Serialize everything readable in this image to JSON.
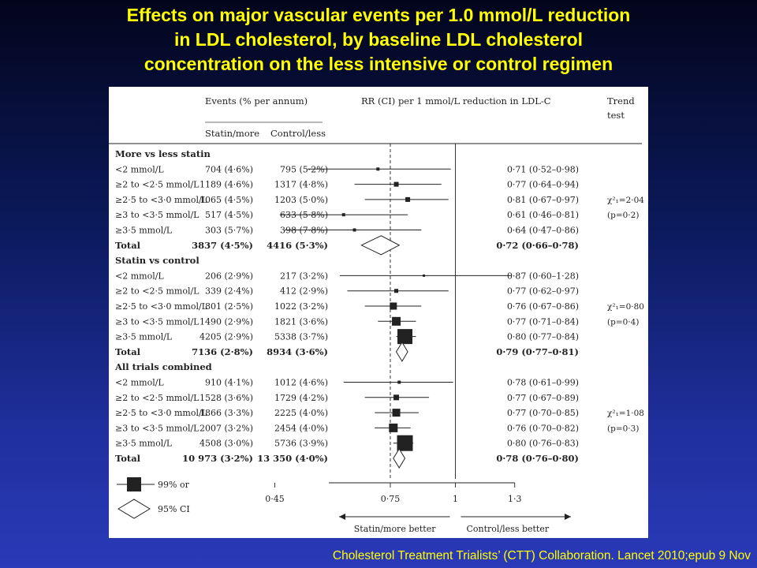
{
  "title_lines": [
    "Effects on major vascular events per 1.0 mmol/L reduction",
    "in LDL cholesterol, by baseline LDL cholesterol",
    "concentration on the less intensive or control regimen"
  ],
  "citation": "Cholesterol Treatment Trialists’ (CTT) Collaboration. Lancet 2010;epub 9 Nov",
  "colors": {
    "background": "#0b1a5c",
    "title": "#ffff00",
    "marker": "#222222"
  },
  "chart_data": {
    "type": "forest",
    "header": {
      "events": "Events (% per annum)",
      "col1": "Statin/more",
      "col2": "Control/less",
      "rr": "RR (CI) per 1 mmol/L reduction in LDL-C",
      "trend_1": "Trend",
      "trend_2": "test"
    },
    "x_axis": {
      "scale": "log",
      "range": [
        0.45,
        1.3
      ],
      "ticks": [
        0.45,
        0.75,
        1,
        1.3
      ],
      "tick_labels": [
        "0·45",
        "0·75",
        "1",
        "1·3"
      ],
      "left_label": "Statin/more better",
      "right_label": "Control/less better",
      "reference_line": 1
    },
    "legend": [
      {
        "symbol": "square",
        "label": "99% or"
      },
      {
        "symbol": "diamond",
        "label": "95% CI"
      }
    ],
    "groups": [
      {
        "name": "More vs less statin",
        "trend_lines": [
          "χ²₁=2·04",
          "(p=0·2)"
        ],
        "rows": [
          {
            "label": "<2 mmol/L",
            "ev1": "704 (4·6%)",
            "ev2": "795 (5·2%)",
            "rr": 0.71,
            "lo": 0.52,
            "hi": 0.98,
            "w": 4,
            "rr_text": "0·71 (0·52–0·98)"
          },
          {
            "label": "≥2 to <2·5 mmol/L",
            "ev1": "1189 (4·6%)",
            "ev2": "1317 (4·8%)",
            "rr": 0.77,
            "lo": 0.64,
            "hi": 0.94,
            "w": 6,
            "rr_text": "0·77 (0·64–0·94)"
          },
          {
            "label": "≥2·5 to <3·0 mmol/L",
            "ev1": "1065 (4·5%)",
            "ev2": "1203 (5·0%)",
            "rr": 0.81,
            "lo": 0.67,
            "hi": 0.97,
            "w": 6,
            "rr_text": "0·81 (0·67–0·97)"
          },
          {
            "label": "≥3 to <3·5 mmol/L",
            "ev1": "517 (4·5%)",
            "ev2": "633 (5·8%)",
            "rr": 0.61,
            "lo": 0.46,
            "hi": 0.81,
            "w": 4,
            "rr_text": "0·61 (0·46–0·81)"
          },
          {
            "label": "≥3·5 mmol/L",
            "ev1": "303 (5·7%)",
            "ev2": "398 (7·8%)",
            "rr": 0.64,
            "lo": 0.47,
            "hi": 0.86,
            "w": 4,
            "rr_text": "0·64 (0·47–0·86)"
          }
        ],
        "total": {
          "label": "Total",
          "ev1": "3837 (4·5%)",
          "ev2": "4416 (5·3%)",
          "rr": 0.72,
          "lo": 0.66,
          "hi": 0.78,
          "diamond": "open",
          "rr_text": "0·72 (0·66–0·78)"
        }
      },
      {
        "name": "Statin vs control",
        "trend_lines": [
          "χ²₁=0·80",
          "(p=0·4)"
        ],
        "rows": [
          {
            "label": "<2 mmol/L",
            "ev1": "206 (2·9%)",
            "ev2": "217 (3·2%)",
            "rr": 0.87,
            "lo": 0.6,
            "hi": 1.28,
            "w": 3,
            "rr_text": "0·87 (0·60–1·28)"
          },
          {
            "label": "≥2 to <2·5 mmol/L",
            "ev1": "339 (2·4%)",
            "ev2": "412 (2·9%)",
            "rr": 0.77,
            "lo": 0.62,
            "hi": 0.97,
            "w": 5,
            "rr_text": "0·77 (0·62–0·97)"
          },
          {
            "label": "≥2·5 to <3·0 mmol/L",
            "ev1": "801 (2·5%)",
            "ev2": "1022 (3·2%)",
            "rr": 0.76,
            "lo": 0.67,
            "hi": 0.86,
            "w": 9,
            "rr_text": "0·76 (0·67–0·86)"
          },
          {
            "label": "≥3 to <3·5 mmol/L",
            "ev1": "1490 (2·9%)",
            "ev2": "1821 (3·6%)",
            "rr": 0.77,
            "lo": 0.71,
            "hi": 0.84,
            "w": 11,
            "rr_text": "0·77 (0·71–0·84)"
          },
          {
            "label": "≥3·5 mmol/L",
            "ev1": "4205 (2·9%)",
            "ev2": "5338 (3·7%)",
            "rr": 0.8,
            "lo": 0.77,
            "hi": 0.84,
            "w": 19,
            "rr_text": "0·80 (0·77–0·84)"
          }
        ],
        "total": {
          "label": "Total",
          "ev1": "7136 (2·8%)",
          "ev2": "8934 (3·6%)",
          "rr": 0.79,
          "lo": 0.77,
          "hi": 0.81,
          "diamond": "open",
          "rr_text": "0·79 (0·77–0·81)"
        }
      },
      {
        "name": "All trials combined",
        "trend_lines": [
          "χ²₁=1·08",
          "(p=0·3)"
        ],
        "rows": [
          {
            "label": "<2 mmol/L",
            "ev1": "910 (4·1%)",
            "ev2": "1012 (4·6%)",
            "rr": 0.78,
            "lo": 0.61,
            "hi": 0.99,
            "w": 4,
            "rr_text": "0·78 (0·61–0·99)"
          },
          {
            "label": "≥2 to <2·5 mmol/L",
            "ev1": "1528 (3·6%)",
            "ev2": "1729 (4·2%)",
            "rr": 0.77,
            "lo": 0.67,
            "hi": 0.89,
            "w": 7,
            "rr_text": "0·77 (0·67–0·89)"
          },
          {
            "label": "≥2·5 to <3·0 mmol/L",
            "ev1": "1866 (3·3%)",
            "ev2": "2225 (4·0%)",
            "rr": 0.77,
            "lo": 0.7,
            "hi": 0.85,
            "w": 10,
            "rr_text": "0·77 (0·70–0·85)"
          },
          {
            "label": "≥3 to <3·5 mmol/L",
            "ev1": "2007 (3·2%)",
            "ev2": "2454 (4·0%)",
            "rr": 0.76,
            "lo": 0.7,
            "hi": 0.82,
            "w": 11,
            "rr_text": "0·76 (0·70–0·82)"
          },
          {
            "label": "≥3·5 mmol/L",
            "ev1": "4508 (3·0%)",
            "ev2": "5736 (3·9%)",
            "rr": 0.8,
            "lo": 0.76,
            "hi": 0.83,
            "w": 20,
            "rr_text": "0·80 (0·76–0·83)"
          }
        ],
        "total": {
          "label": "Total",
          "ev1": "10 973 (3·2%)",
          "ev2": "13 350 (4·0%)",
          "rr": 0.78,
          "lo": 0.76,
          "hi": 0.8,
          "diamond": "open",
          "rr_text": "0·78 (0·76–0·80)"
        }
      }
    ]
  }
}
